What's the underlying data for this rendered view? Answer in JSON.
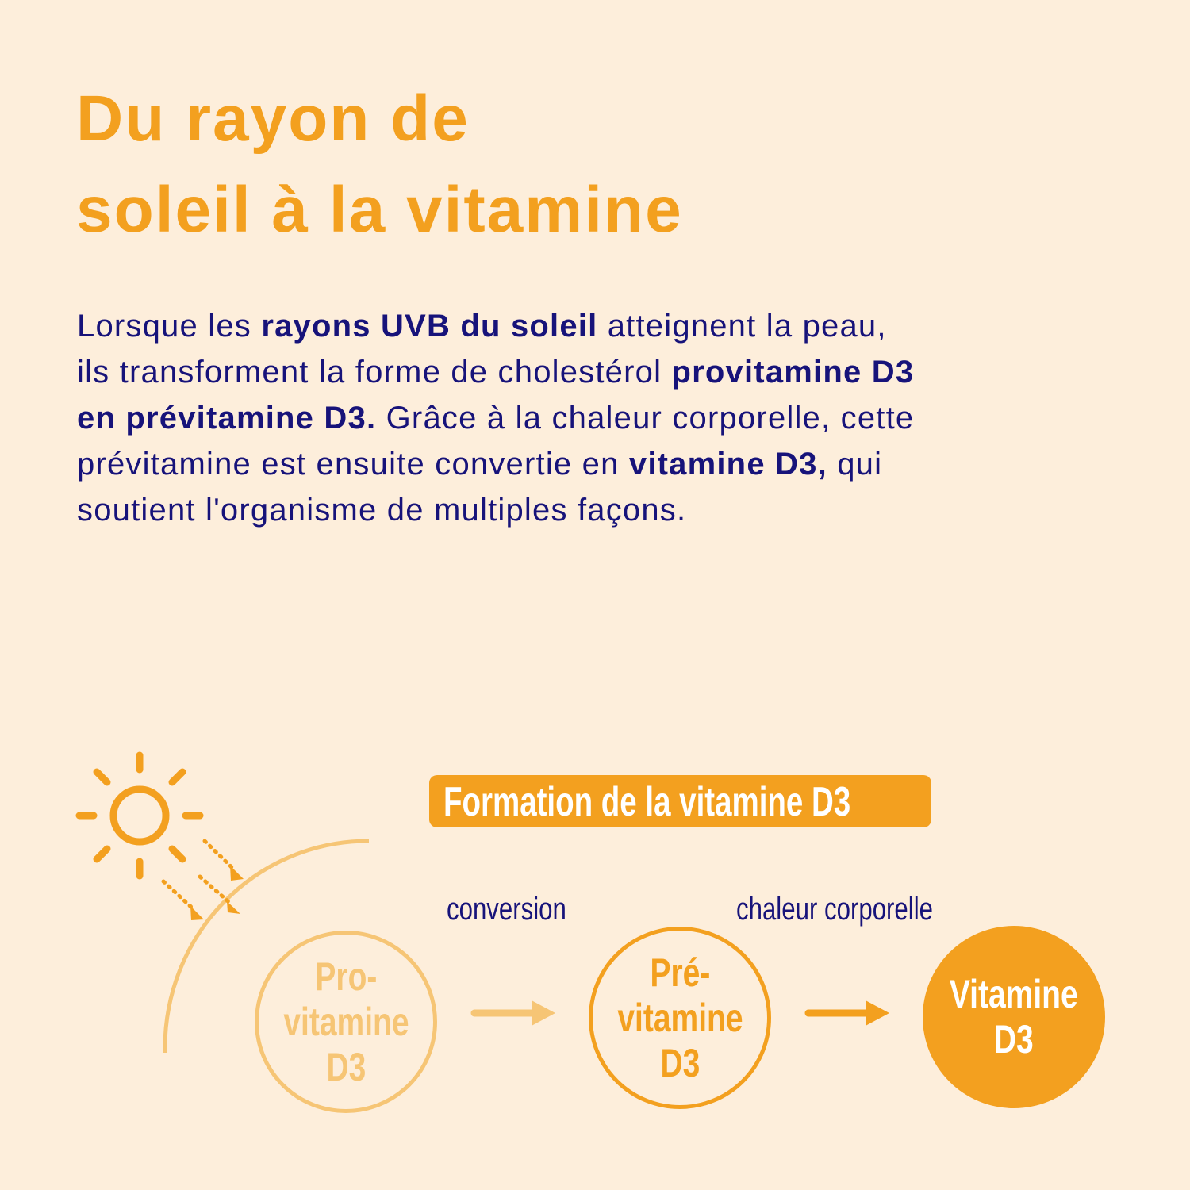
{
  "title": {
    "line1": "Du rayon de",
    "line2": "soleil à la vitamine"
  },
  "body": {
    "l1a": "Lorsque les ",
    "l1b": "rayons UVB du soleil",
    "l1c": " atteignent la peau,",
    "l2a": "ils transforment la forme de cholestérol ",
    "l2b": "provitamine D3",
    "l3a": "en prévitamine D3.",
    "l3b": " Grâce à la chaleur corporelle, cette",
    "l4a": "prévitamine est ensuite convertie en ",
    "l4b": "vitamine D3,",
    "l4c": " qui",
    "l5": "soutient l'organisme de multiples façons."
  },
  "diagram": {
    "heading": "Formation de la vitamine D3",
    "step1_label": "conversion",
    "step2_label": "chaleur corporelle",
    "nodes": [
      {
        "l1": "Pro-",
        "l2": "vitamine",
        "l3": "D3"
      },
      {
        "l1": "Pré-",
        "l2": "vitamine",
        "l3": "D3"
      },
      {
        "l1": "Vitamine",
        "l2": "D3"
      }
    ],
    "icons": [
      "sun-icon",
      "uv-ray-arrow-icon",
      "arrow-right-icon"
    ]
  },
  "colors": {
    "background": "#fdeedb",
    "orange": "#f3a01f",
    "light_orange": "#f6c575",
    "navy": "#17137a"
  }
}
